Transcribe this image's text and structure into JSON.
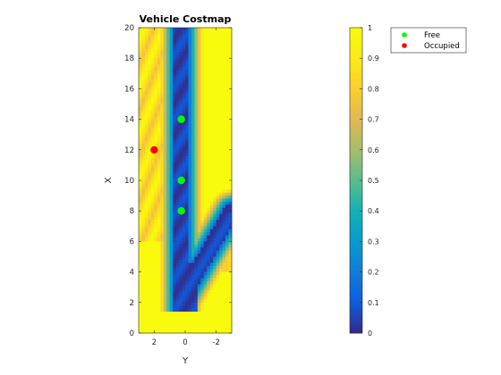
{
  "chart_data": {
    "type": "heatmap",
    "title": "Vehicle Costmap",
    "xlabel": "Y",
    "ylabel": "X",
    "x_reversed": true,
    "xlim": [
      -3,
      3
    ],
    "ylim": [
      0,
      20
    ],
    "xticks": [
      2,
      0,
      -2
    ],
    "xtick_labels": [
      "2",
      "0",
      "-2"
    ],
    "yticks": [
      0,
      2,
      4,
      6,
      8,
      10,
      12,
      14,
      16,
      18,
      20
    ],
    "ytick_labels": [
      "0",
      "2",
      "4",
      "6",
      "8",
      "10",
      "12",
      "14",
      "16",
      "18",
      "20"
    ],
    "colorbar": {
      "colormap": "parula",
      "range": [
        0,
        1
      ],
      "ticks": [
        0,
        0.1,
        0.2,
        0.3,
        0.4,
        0.5,
        0.6,
        0.7,
        0.8,
        0.9,
        1
      ],
      "tick_labels": [
        "0",
        "0.1",
        "0.2",
        "0.3",
        "0.4",
        "0.5",
        "0.6",
        "0.7",
        "0.8",
        "0.9",
        "1"
      ]
    },
    "legend": {
      "placement": "top-right",
      "entries": [
        {
          "label": "Free",
          "color": "#00ff00"
        },
        {
          "label": "Occupied",
          "color": "#ff0000"
        }
      ]
    },
    "points": [
      {
        "series": "Free",
        "y": 0.25,
        "x": 14
      },
      {
        "series": "Free",
        "y": 0.25,
        "x": 10
      },
      {
        "series": "Free",
        "y": 0.25,
        "x": 8
      },
      {
        "series": "Occupied",
        "y": 2,
        "x": 12
      }
    ],
    "cost_field": {
      "description_values": "cost in [0,1] over Y in [-3,3] and X in [0,20]",
      "grid": [
        30,
        100
      ],
      "free_corridor": {
        "y_center": 0.25,
        "half_width": 0.45,
        "x_range": [
          1.5,
          20
        ]
      },
      "free_branch": {
        "from": [
          0.1,
          2.5
        ],
        "to": [
          -3,
          8
        ],
        "half_width": 0.5
      },
      "free_pad": {
        "y_range": [
          -0.9,
          0.4
        ],
        "x_range": [
          1.5,
          4.5
        ]
      },
      "default_cost": 1
    }
  }
}
